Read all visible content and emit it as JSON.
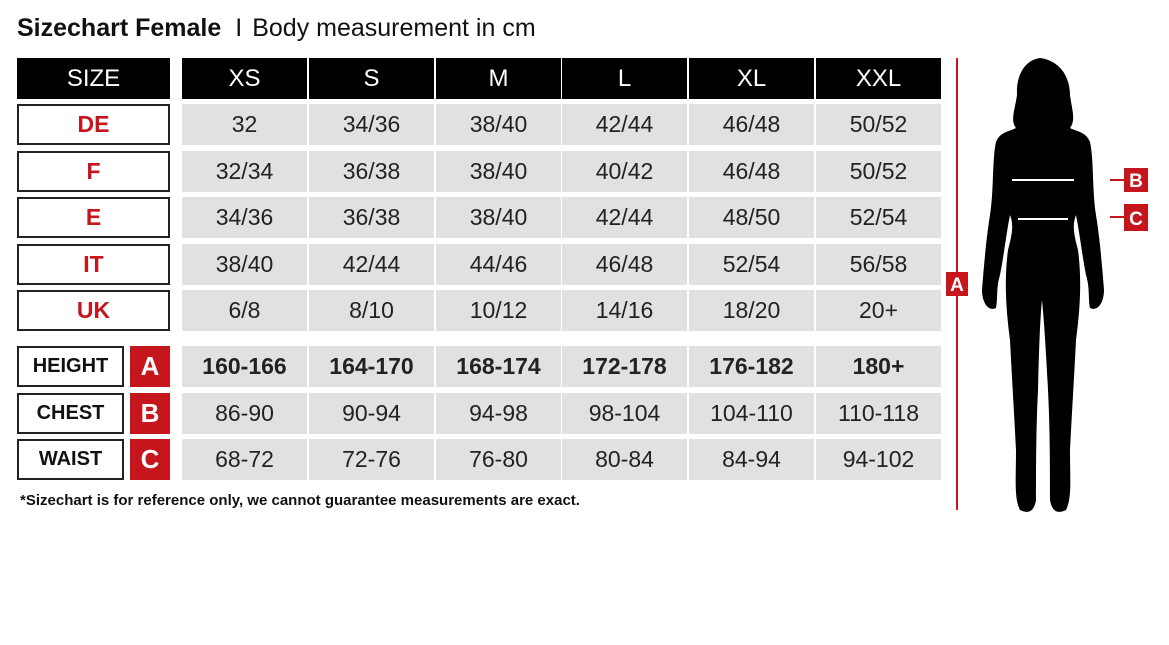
{
  "title": {
    "main": "Sizechart Female",
    "separator": "I",
    "sub": "Body measurement in cm"
  },
  "header": {
    "label": "SIZE",
    "sizes": [
      "XS",
      "S",
      "M",
      "L",
      "XL",
      "XXL"
    ]
  },
  "conversion": [
    {
      "label": "DE",
      "values": [
        "32",
        "34/36",
        "38/40",
        "42/44",
        "46/48",
        "50/52"
      ]
    },
    {
      "label": "F",
      "values": [
        "32/34",
        "36/38",
        "38/40",
        "40/42",
        "46/48",
        "50/52"
      ]
    },
    {
      "label": "E",
      "values": [
        "34/36",
        "36/38",
        "38/40",
        "42/44",
        "48/50",
        "52/54"
      ]
    },
    {
      "label": "IT",
      "values": [
        "38/40",
        "42/44",
        "44/46",
        "46/48",
        "52/54",
        "56/58"
      ]
    },
    {
      "label": "UK",
      "values": [
        "6/8",
        "8/10",
        "10/12",
        "14/16",
        "18/20",
        "20+"
      ]
    }
  ],
  "measurements": [
    {
      "label": "HEIGHT",
      "letter": "A",
      "bold": true,
      "values": [
        "160-166",
        "164-170",
        "168-174",
        "172-178",
        "176-182",
        "180+"
      ]
    },
    {
      "label": "CHEST",
      "letter": "B",
      "values": [
        "86-90",
        "90-94",
        "94-98",
        "98-104",
        "104-110",
        "110-118"
      ]
    },
    {
      "label": "WAIST",
      "letter": "C",
      "values": [
        "68-72",
        "72-76",
        "76-80",
        "80-84",
        "84-94",
        "94-102"
      ]
    }
  ],
  "footnote": "*Sizechart is for reference only, we cannot guarantee measurements are exact.",
  "figure": {
    "markers": [
      "A",
      "B",
      "C"
    ]
  },
  "colors": {
    "accent": "#c4161c",
    "header": "#000000",
    "cell": "#e1e1e1"
  }
}
